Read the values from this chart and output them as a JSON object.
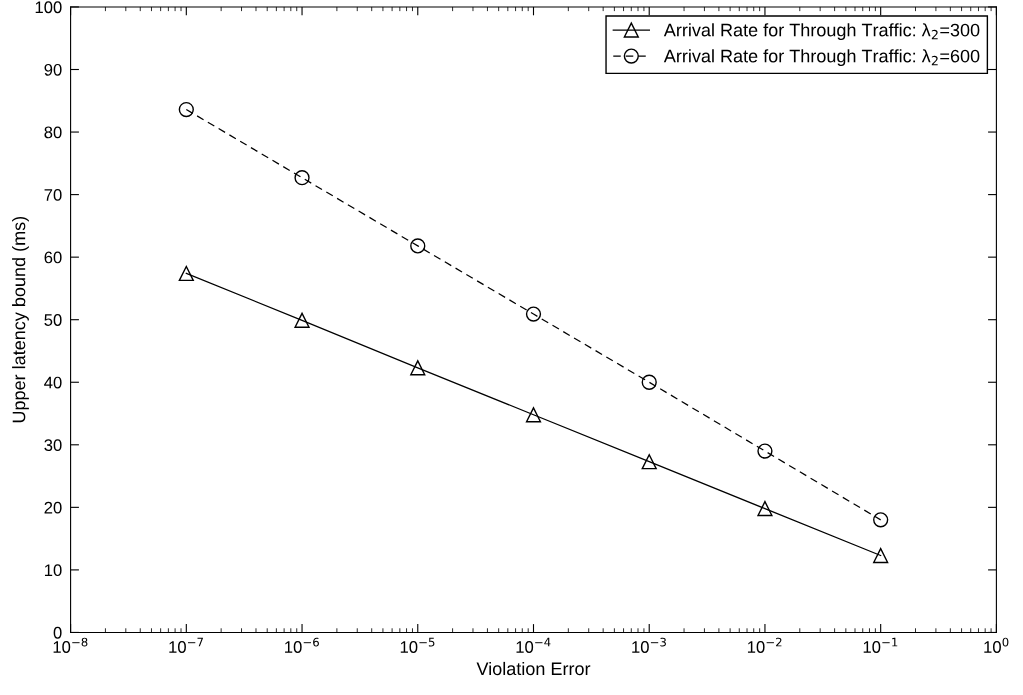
{
  "chart_data": {
    "type": "line",
    "xlabel": "Violation Error",
    "ylabel": "Upper latency bound (ms)",
    "x": [
      1e-07,
      1e-06,
      1e-05,
      0.0001,
      0.001,
      0.01,
      0.1
    ],
    "series": [
      {
        "name": "Arrival Rate for Through Traffic: λ$_{2}$=300",
        "color": "#000000",
        "marker": "triangle",
        "line_style": "solid",
        "values": [
          57.4,
          49.9,
          42.3,
          34.8,
          27.3,
          19.8,
          12.3
        ]
      },
      {
        "name": "Arrival Rate for Through Traffic: λ$_{2}$=600",
        "color": "#000000",
        "marker": "circle",
        "line_style": "dashed",
        "values": [
          83.6,
          72.7,
          61.8,
          50.9,
          40.0,
          29.0,
          18.0
        ]
      }
    ],
    "log": "x",
    "xlim": [
      1e-08,
      1
    ],
    "xticks": [
      {
        "value": 1e-08,
        "label": "10$^{−8}$"
      },
      {
        "value": 1e-07,
        "label": "10$^{−7}$"
      },
      {
        "value": 1e-06,
        "label": "10$^{−6}$"
      },
      {
        "value": 1e-05,
        "label": "10$^{−5}$"
      },
      {
        "value": 0.0001,
        "label": "10$^{−4}$"
      },
      {
        "value": 0.001,
        "label": "10$^{−3}$"
      },
      {
        "value": 0.01,
        "label": "10$^{−2}$"
      },
      {
        "value": 0.1,
        "label": "10$^{−1}$"
      },
      {
        "value": 1,
        "label": "10$^{0}$"
      }
    ],
    "ylim": [
      0,
      100
    ],
    "yticks": [
      0,
      10,
      20,
      30,
      40,
      50,
      60,
      70,
      80,
      90,
      100
    ],
    "grid": false,
    "legend": "top right"
  }
}
